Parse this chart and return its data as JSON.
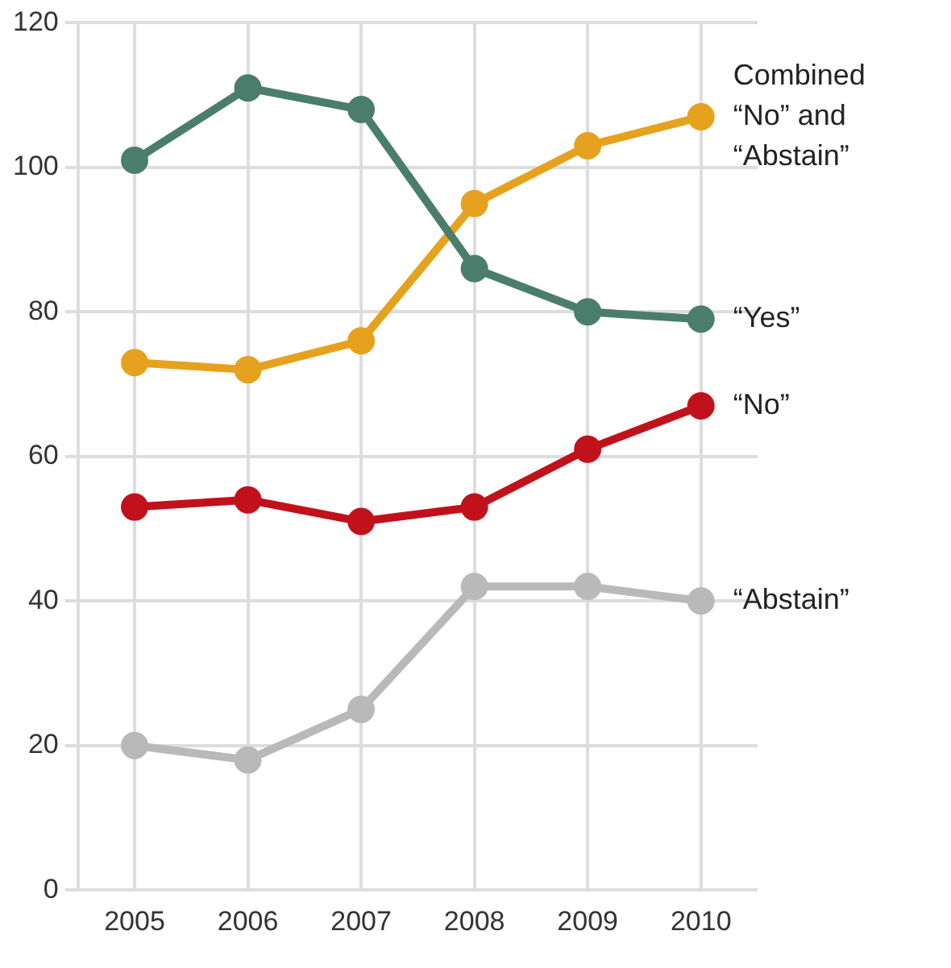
{
  "chart_data": {
    "type": "line",
    "categories": [
      "2005",
      "2006",
      "2007",
      "2008",
      "2009",
      "2010"
    ],
    "series": [
      {
        "name": "“Yes”",
        "color": "#4b7d6c",
        "values": [
          101,
          111,
          108,
          86,
          80,
          79
        ]
      },
      {
        "name": "Combined “No” and “Abstain”",
        "color": "#e6a21f",
        "values": [
          73,
          72,
          76,
          95,
          103,
          107
        ]
      },
      {
        "name": "“No”",
        "color": "#c1121c",
        "values": [
          53,
          54,
          51,
          53,
          61,
          67
        ]
      },
      {
        "name": "“Abstain”",
        "color": "#b9b9b9",
        "values": [
          20,
          18,
          25,
          42,
          42,
          40
        ]
      }
    ],
    "ylim": [
      0,
      120
    ],
    "yticks": [
      0,
      20,
      40,
      60,
      80,
      100,
      120
    ],
    "grid": true,
    "legend": false,
    "marker": "circle",
    "line_style": "solid"
  }
}
